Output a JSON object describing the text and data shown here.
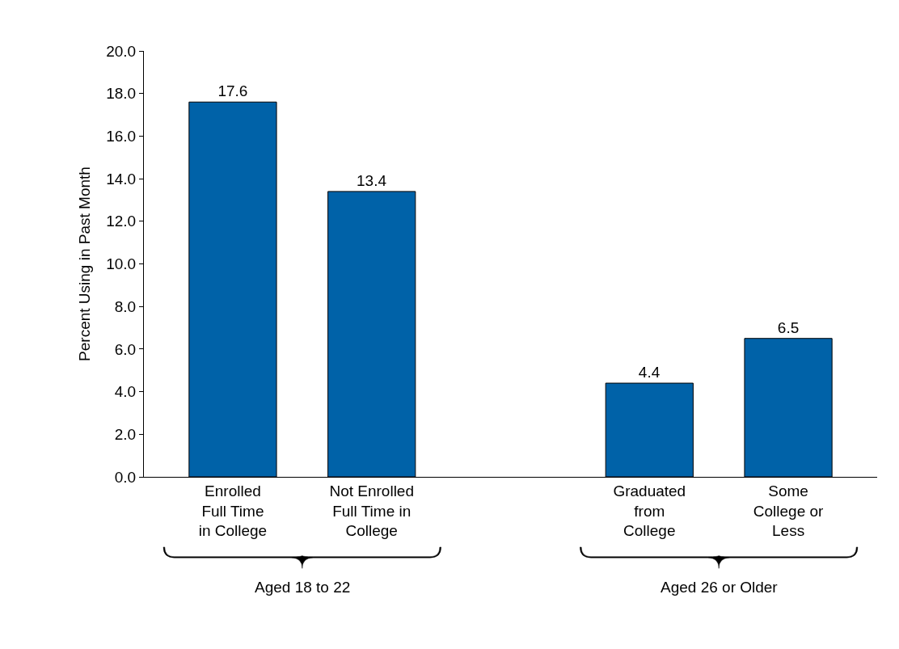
{
  "chart_data": {
    "type": "bar",
    "ylabel": "Percent Using in Past Month",
    "categories": [
      "Enrolled\nFull Time\nin College",
      "Not Enrolled\nFull Time in\nCollege",
      null,
      "Graduated\nfrom\nCollege",
      "Some\nCollege or\nLess"
    ],
    "values": [
      17.6,
      13.4,
      null,
      4.4,
      6.5
    ],
    "color": "#0062a8",
    "ylim": [
      0,
      20
    ],
    "yticks": [
      {
        "value": 0,
        "label": "0.0"
      },
      {
        "value": 2,
        "label": "2.0"
      },
      {
        "value": 4,
        "label": "4.0"
      },
      {
        "value": 6,
        "label": "6.0"
      },
      {
        "value": 8,
        "label": "8.0"
      },
      {
        "value": 10,
        "label": "10.0"
      },
      {
        "value": 12,
        "label": "12.0"
      },
      {
        "value": 14,
        "label": "14.0"
      },
      {
        "value": 16,
        "label": "16.0"
      },
      {
        "value": 18,
        "label": "18.0"
      },
      {
        "value": 20,
        "label": "20.0"
      }
    ],
    "data_labels": true,
    "legend": false,
    "annotations": [
      "Aged 18 to 22",
      "Aged 26 or Older"
    ]
  }
}
